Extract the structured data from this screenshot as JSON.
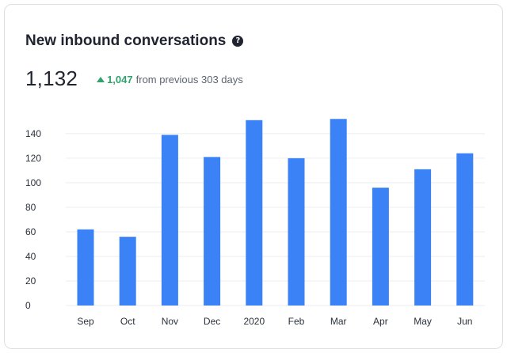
{
  "header": {
    "title": "New inbound conversations",
    "help_icon": "question-circle-icon"
  },
  "summary": {
    "value": "1,132",
    "delta_icon": "triangle-up-icon",
    "delta_value": "1,047",
    "delta_text": "from previous 303 days"
  },
  "colors": {
    "bar": "#3b82f6",
    "positive": "#2fa36b",
    "grid": "#eceef1"
  },
  "chart_data": {
    "type": "bar",
    "title": "New inbound conversations",
    "xlabel": "",
    "ylabel": "",
    "categories": [
      "Sep",
      "Oct",
      "Nov",
      "Dec",
      "2020",
      "Feb",
      "Mar",
      "Apr",
      "May",
      "Jun"
    ],
    "values": [
      62,
      56,
      139,
      121,
      151,
      120,
      152,
      96,
      111,
      124
    ],
    "y_ticks": [
      0,
      20,
      40,
      60,
      80,
      100,
      120,
      140
    ],
    "ylim": [
      0,
      160
    ],
    "grid": true,
    "legend": "none"
  }
}
